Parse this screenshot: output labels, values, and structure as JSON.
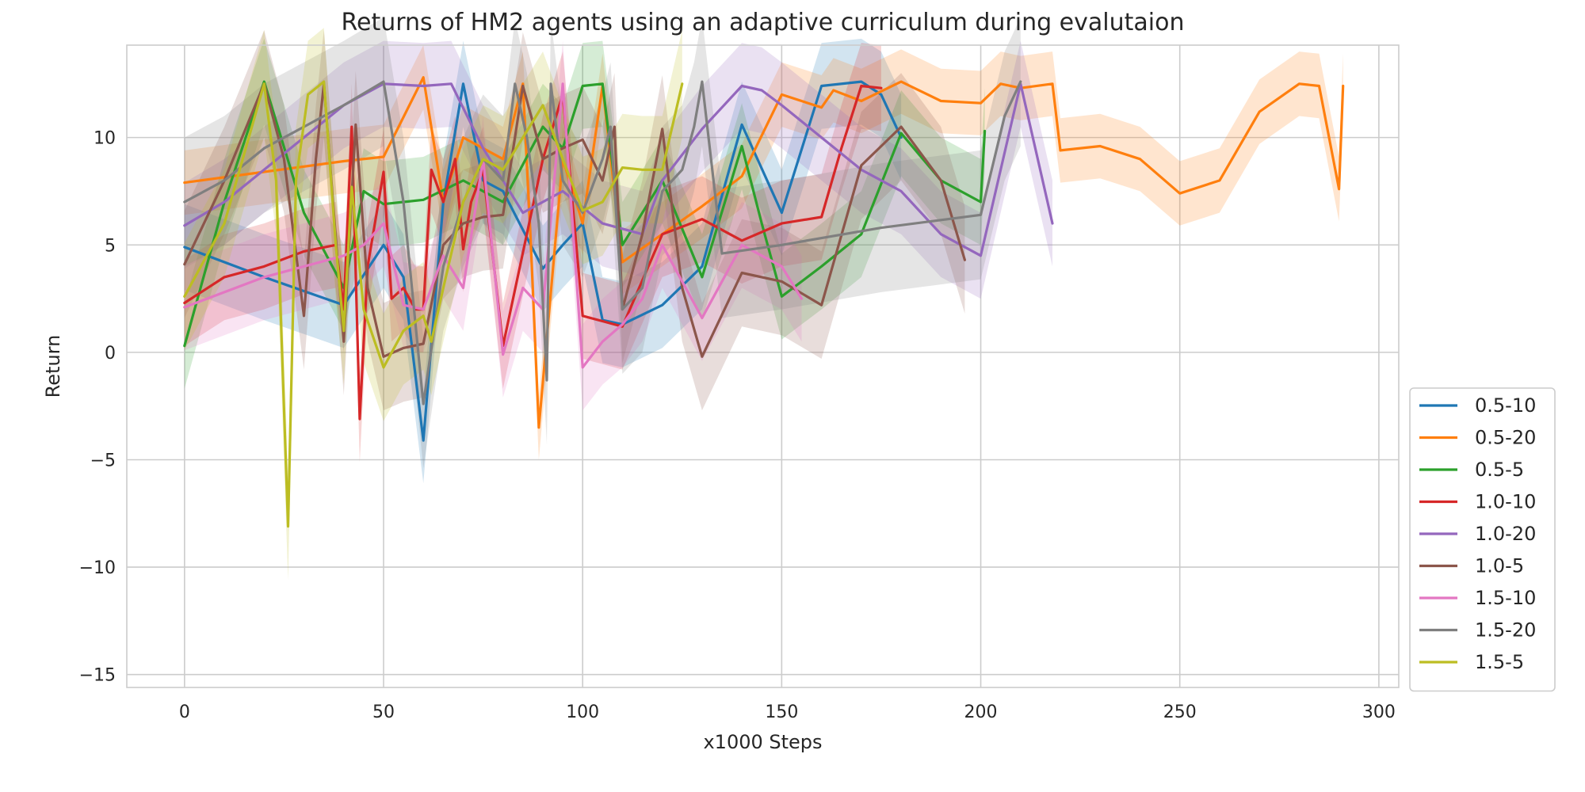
{
  "chart_data": {
    "type": "line",
    "title": "Returns of HM2 agents using an adaptive curriculum during evalutaion",
    "xlabel": "x1000 Steps",
    "ylabel": "Return",
    "xlim": [
      -14.5,
      305
    ],
    "ylim": [
      -15.6,
      14.3
    ],
    "xticks": [
      0,
      50,
      100,
      150,
      200,
      250,
      300
    ],
    "xtick_labels": [
      "0",
      "50",
      "100",
      "150",
      "200",
      "250",
      "300"
    ],
    "yticks": [
      -15,
      -10,
      -5,
      0,
      5,
      10
    ],
    "ytick_labels": [
      "−15",
      "−10",
      "−5",
      "0",
      "5",
      "10"
    ],
    "grid": true,
    "legend_position": "lower-right-outside",
    "series": [
      {
        "name": "0.5-10",
        "color": "#1f77b4",
        "band": 2.0,
        "x": [
          0,
          20,
          40,
          50,
          55,
          60,
          65,
          70,
          75,
          80,
          90,
          95,
          100,
          105,
          110,
          120,
          130,
          140,
          150,
          160,
          170,
          175,
          180
        ],
        "y": [
          4.9,
          3.5,
          2.2,
          5.0,
          3.5,
          -4.1,
          7.0,
          12.5,
          8.0,
          7.5,
          3.9,
          5.0,
          6.0,
          1.5,
          1.3,
          2.2,
          4.0,
          10.6,
          6.5,
          12.4,
          12.6,
          12.0,
          10.0
        ]
      },
      {
        "name": "0.5-20",
        "color": "#ff7f0e",
        "band": 1.5,
        "x": [
          0,
          20,
          40,
          50,
          60,
          65,
          70,
          80,
          85,
          87,
          89,
          95,
          100,
          105,
          110,
          120,
          130,
          140,
          150,
          160,
          163,
          170,
          180,
          190,
          200,
          205,
          210,
          218,
          220,
          230,
          240,
          250,
          260,
          270,
          280,
          285,
          290,
          291
        ],
        "y": [
          7.9,
          8.4,
          8.9,
          9.1,
          12.8,
          7.0,
          10.0,
          9.0,
          12.5,
          5.0,
          -3.5,
          9.0,
          6.0,
          12.4,
          4.2,
          5.5,
          6.8,
          8.2,
          12.0,
          11.4,
          12.2,
          11.7,
          12.6,
          11.7,
          11.6,
          12.5,
          12.3,
          12.5,
          9.4,
          9.6,
          9.0,
          7.4,
          8.0,
          11.2,
          12.5,
          12.4,
          7.6,
          12.4
        ]
      },
      {
        "name": "0.5-5",
        "color": "#2ca02c",
        "band": 2.0,
        "x": [
          0,
          10,
          20,
          30,
          40,
          45,
          50,
          60,
          70,
          80,
          90,
          95,
          100,
          105,
          110,
          120,
          130,
          140,
          145,
          150,
          160,
          170,
          180,
          190,
          200,
          201
        ],
        "y": [
          0.3,
          7.0,
          12.6,
          6.5,
          3.0,
          7.5,
          6.9,
          7.1,
          8.0,
          7.0,
          10.5,
          9.5,
          12.4,
          12.5,
          5.0,
          8.0,
          3.5,
          9.6,
          6.0,
          2.6,
          4.0,
          5.5,
          10.2,
          8.0,
          7.0,
          10.3
        ]
      },
      {
        "name": "1.0-10",
        "color": "#d62728",
        "band": 2.0,
        "x": [
          0,
          10,
          20,
          30,
          38,
          40,
          42,
          44,
          46,
          50,
          52,
          55,
          58,
          60,
          62,
          65,
          68,
          70,
          72,
          75,
          80,
          90,
          95,
          100,
          110,
          120,
          130,
          140,
          150,
          160,
          165,
          170,
          175
        ],
        "y": [
          2.3,
          3.5,
          4.0,
          4.7,
          5.0,
          2.0,
          10.5,
          -3.1,
          4.0,
          8.4,
          2.5,
          3.0,
          2.0,
          2.0,
          8.5,
          7.0,
          9.0,
          4.8,
          7.0,
          8.5,
          0.3,
          9.0,
          12.0,
          1.7,
          1.2,
          5.5,
          6.2,
          5.2,
          6.0,
          6.3,
          9.5,
          12.4,
          12.3
        ]
      },
      {
        "name": "1.0-20",
        "color": "#9467bd",
        "band": 2.0,
        "x": [
          0,
          10,
          20,
          30,
          40,
          50,
          60,
          67,
          75,
          85,
          95,
          105,
          115,
          120,
          130,
          140,
          145,
          150,
          160,
          170,
          180,
          190,
          200,
          210,
          218
        ],
        "y": [
          5.9,
          7.0,
          8.5,
          10.0,
          11.5,
          12.5,
          12.4,
          12.5,
          9.5,
          6.5,
          7.5,
          6.0,
          5.5,
          8.0,
          10.4,
          12.4,
          12.2,
          11.5,
          10.0,
          8.5,
          7.5,
          5.5,
          4.5,
          12.5,
          6.0
        ]
      },
      {
        "name": "1.0-5",
        "color": "#8c564b",
        "band": 2.5,
        "x": [
          0,
          10,
          20,
          25,
          30,
          33,
          35,
          40,
          43,
          46,
          50,
          55,
          60,
          65,
          70,
          75,
          80,
          85,
          90,
          95,
          100,
          105,
          108,
          110,
          115,
          120,
          125,
          130,
          140,
          150,
          160,
          170,
          180,
          190,
          196
        ],
        "y": [
          4.1,
          8.0,
          12.5,
          9.0,
          1.7,
          9.0,
          12.5,
          0.5,
          10.6,
          3.0,
          -0.2,
          0.2,
          0.4,
          5.0,
          6.0,
          6.3,
          6.4,
          12.4,
          9.0,
          9.5,
          9.9,
          8.0,
          10.5,
          2.0,
          5.5,
          10.4,
          3.0,
          -0.2,
          3.7,
          3.3,
          2.2,
          8.7,
          10.5,
          8.0,
          4.3
        ]
      },
      {
        "name": "1.5-10",
        "color": "#e377c2",
        "band": 2.0,
        "x": [
          0,
          10,
          20,
          30,
          40,
          45,
          50,
          55,
          60,
          65,
          70,
          75,
          80,
          85,
          90,
          95,
          100,
          105,
          110,
          115,
          120,
          130,
          140,
          145,
          150,
          155
        ],
        "y": [
          2.1,
          2.8,
          3.5,
          4.0,
          4.5,
          5.0,
          6.0,
          2.2,
          2.0,
          4.5,
          3.0,
          9.0,
          -0.1,
          3.0,
          2.0,
          12.5,
          -0.7,
          0.5,
          1.3,
          2.5,
          5.0,
          1.6,
          5.0,
          4.5,
          4.0,
          2.5
        ]
      },
      {
        "name": "1.5-20",
        "color": "#7f7f7f",
        "band": 3.0,
        "x": [
          0,
          10,
          20,
          30,
          40,
          50,
          55,
          60,
          65,
          70,
          75,
          80,
          83,
          86,
          89,
          91,
          92,
          95,
          100,
          105,
          107,
          110,
          115,
          120,
          125,
          128,
          130,
          135,
          150,
          175,
          200,
          206,
          210
        ],
        "y": [
          7.0,
          8.0,
          9.5,
          10.5,
          11.5,
          12.6,
          7.0,
          -2.4,
          4.0,
          7.0,
          9.0,
          8.0,
          12.5,
          10.0,
          6.0,
          -1.3,
          12.5,
          8.0,
          6.5,
          9.0,
          10.5,
          2.0,
          3.0,
          7.5,
          8.5,
          10.5,
          12.6,
          4.6,
          5.0,
          5.8,
          6.4,
          11.0,
          12.6
        ]
      },
      {
        "name": "1.5-5",
        "color": "#bcbd22",
        "band": 2.5,
        "x": [
          0,
          10,
          20,
          23,
          26,
          28,
          31,
          35,
          38,
          40,
          42,
          45,
          50,
          55,
          60,
          62,
          65,
          70,
          75,
          80,
          85,
          90,
          95,
          100,
          105,
          110,
          115,
          120,
          125
        ],
        "y": [
          2.6,
          6.0,
          12.5,
          8.0,
          -8.1,
          8.0,
          12.0,
          12.6,
          5.0,
          1.0,
          7.7,
          2.0,
          -0.7,
          1.0,
          1.7,
          0.5,
          3.0,
          7.0,
          9.0,
          8.5,
          10.0,
          11.5,
          9.0,
          6.6,
          7.0,
          8.6,
          8.5,
          8.5,
          12.5
        ]
      }
    ]
  }
}
